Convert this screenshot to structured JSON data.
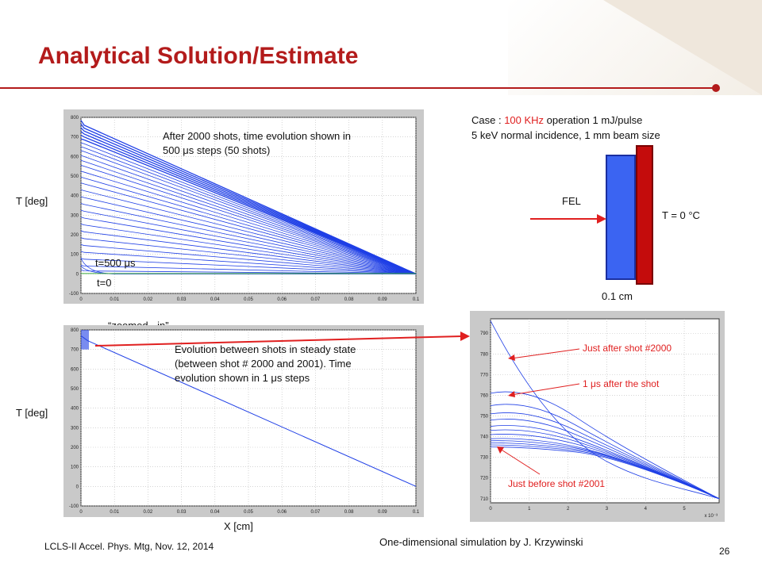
{
  "slide": {
    "title": "Analytical Solution/Estimate",
    "footer_left": "LCLS-II Accel. Phys. Mtg, Nov. 12, 2014",
    "page_number": "26",
    "footer_center": "One-dimensional simulation by J. Krzywinski",
    "accent_color": "#b31b1b"
  },
  "case_box": {
    "prefix": "Case : ",
    "highlight": "100 KHz",
    "rest": " operation 1 mJ/pulse",
    "line2": "5 keV normal incidence, 1 mm beam size"
  },
  "schematic": {
    "fel_label": "FEL",
    "temp_label": "T = 0 °C",
    "thickness_label": "0.1 cm",
    "plate_color": "#3b64f2",
    "sink_color": "#c40c0c",
    "arrow_color": "#e02020"
  },
  "top_plot": {
    "ylabel": "T [deg]",
    "annotation_line1": "After 2000 shots,  time evolution shown in",
    "annotation_line2": "500 μs steps (50 shots)",
    "label_t500": "t=500 μs",
    "label_t0": "t=0"
  },
  "bottom_plot": {
    "ylabel": "T [deg]",
    "xlabel": "X [cm]",
    "zoom_label": "“zoomed - in”",
    "annotation_line1": "Evolution between shots in steady state",
    "annotation_line2": "(between shot # 2000 and 2001). Time",
    "annotation_line3": "evolution shown in 1 μs steps"
  },
  "zoom_plot": {
    "label_after": "Just after shot  #2000",
    "label_1us": "1 μs after the shot",
    "label_before": "Just before shot #2001",
    "x_exponent": "x 10⁻³"
  },
  "chart_data": [
    {
      "type": "line",
      "title": "",
      "xlabel": "",
      "ylabel": "T [deg]",
      "xlim": [
        0,
        0.1
      ],
      "ylim": [
        -100,
        800
      ],
      "x_ticks": [
        "0",
        "0.01",
        "0.02",
        "0.03",
        "0.04",
        "0.05",
        "0.06",
        "0.07",
        "0.08",
        "0.09",
        "0.1"
      ],
      "y_ticks": [
        "-100",
        "0",
        "100",
        "200",
        "300",
        "400",
        "500",
        "600",
        "700",
        "800"
      ],
      "grid": true,
      "num_curves": 28,
      "peak_temperatures": [
        760,
        745,
        730,
        715,
        700,
        685,
        665,
        645,
        625,
        600,
        575,
        550,
        520,
        490,
        460,
        425,
        390,
        355,
        320,
        285,
        250,
        215,
        180,
        145,
        110,
        75,
        40,
        15
      ],
      "boundary": {
        "x": 0.1,
        "T": 0
      },
      "series_color": "#1f3fe6",
      "initial_curve_color": "#3aa63a"
    },
    {
      "type": "line",
      "title": "",
      "xlabel": "X [cm]",
      "ylabel": "T [deg]",
      "xlim": [
        0,
        0.1
      ],
      "ylim": [
        -100,
        800
      ],
      "x_ticks": [
        "0",
        "0.01",
        "0.02",
        "0.03",
        "0.04",
        "0.05",
        "0.06",
        "0.07",
        "0.08",
        "0.09",
        "0.1"
      ],
      "y_ticks": [
        "-100",
        "0",
        "100",
        "200",
        "300",
        "400",
        "500",
        "600",
        "700",
        "800"
      ],
      "grid": true,
      "series": [
        {
          "x": [
            0,
            0.1
          ],
          "y": [
            745,
            0
          ]
        }
      ],
      "series_color": "#1f3fe6"
    },
    {
      "type": "line",
      "title": "",
      "xlabel": "",
      "ylabel": "",
      "x_scale_exponent": -3,
      "xlim": [
        0,
        5.9
      ],
      "ylim": [
        708,
        797
      ],
      "x_ticks": [
        "0",
        "1",
        "2",
        "3",
        "4",
        "5"
      ],
      "y_ticks": [
        "710",
        "720",
        "730",
        "740",
        "750",
        "760",
        "770",
        "780",
        "790"
      ],
      "grid": true,
      "series_color": "#1f3fe6",
      "curves_at_x0": [
        796,
        761,
        755,
        751,
        748,
        745,
        743,
        741,
        739,
        738,
        737,
        736,
        735
      ],
      "end_point": {
        "x": 5.9,
        "T": 710
      }
    }
  ]
}
